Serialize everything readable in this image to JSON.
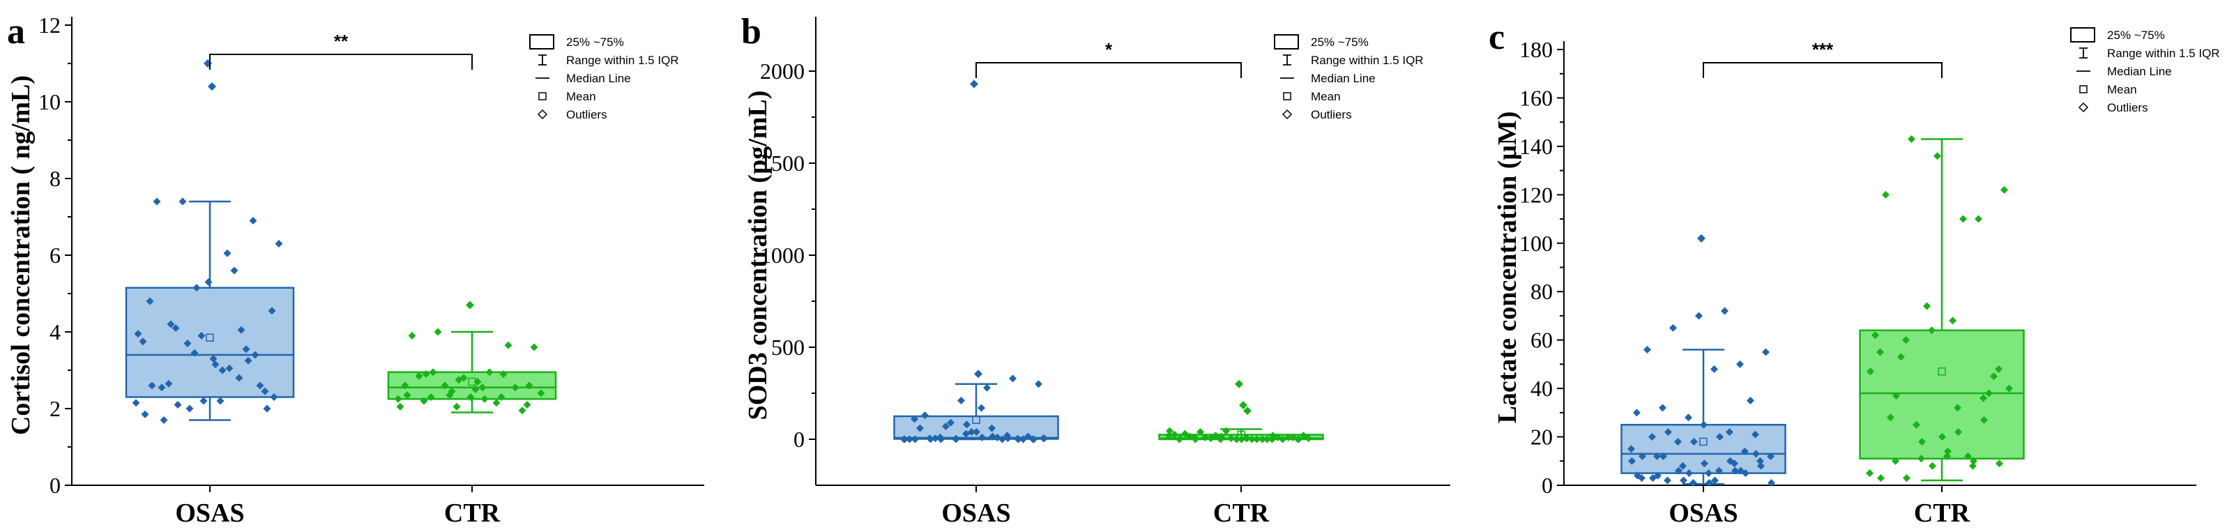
{
  "chart_data": [
    {
      "panel": "a",
      "type": "box",
      "ylabel": "Cortisol concentration ( ng/mL)",
      "ylim": [
        0,
        12
      ],
      "yticks": [
        "0",
        "2",
        "4",
        "6",
        "8",
        "10",
        "12"
      ],
      "categories": [
        "OSAS",
        "CTR"
      ],
      "significance": "**",
      "legend": [
        "25% ~75%",
        "Range within 1.5 IQR",
        "Median Line",
        "Mean",
        "Outliers"
      ],
      "legend_position": "top-right",
      "series": [
        {
          "name": "OSAS",
          "color": "#2166ac",
          "fill": "#a9c9e8",
          "q1": 2.3,
          "median": 3.4,
          "q3": 5.15,
          "whisker_low": 1.7,
          "whisker_high": 7.4,
          "mean": 3.85,
          "points": [
            2.15,
            2.55,
            3.7,
            3.3,
            2.8,
            2.45,
            3.75,
            2.65,
            3.45,
            2.2,
            3.55,
            4.55,
            4.8,
            4.1,
            3.9,
            6.05,
            6.9,
            6.3,
            7.4,
            7.4,
            5.3,
            5.6,
            2.6,
            3.95,
            1.7,
            2.0,
            3.15,
            4.05,
            2.0,
            1.85,
            4.2,
            5.15,
            3.0,
            3.25,
            2.3,
            2.6,
            2.1,
            2.2,
            3.05,
            3.4
          ],
          "outliers": [
            11.0,
            10.4
          ]
        },
        {
          "name": "CTR",
          "color": "#19b219",
          "fill": "#7de67d",
          "q1": 2.25,
          "median": 2.55,
          "q3": 2.95,
          "whisker_low": 1.9,
          "whisker_high": 4.0,
          "mean": 2.7,
          "points": [
            2.25,
            2.2,
            2.35,
            2.5,
            2.3,
            2.1,
            2.6,
            2.3,
            2.05,
            2.55,
            3.65,
            3.6,
            3.9,
            4.0,
            2.8,
            2.95,
            2.55,
            2.4,
            2.85,
            2.6,
            2.3,
            2.15,
            1.95,
            2.05,
            2.9,
            2.45,
            2.7,
            2.9,
            2.6,
            2.35,
            2.95,
            2.75,
            2.25
          ],
          "outliers": [
            4.7
          ]
        }
      ]
    },
    {
      "panel": "b",
      "type": "box",
      "ylabel": "SOD3 concentration (pg/mL)",
      "ylim": [
        -250,
        2250
      ],
      "yticks": [
        "0",
        "500",
        "1000",
        "1500",
        "2000"
      ],
      "categories": [
        "OSAS",
        "CTR"
      ],
      "significance": "*",
      "legend": [
        "25% ~75%",
        "Range within 1.5 IQR",
        "Median Line",
        "Mean",
        "Outliers"
      ],
      "legend_position": "top-right",
      "series": [
        {
          "name": "OSAS",
          "color": "#2166ac",
          "fill": "#a9c9e8",
          "q1": 2,
          "median": 8,
          "q3": 125,
          "whisker_low": 0,
          "whisker_high": 300,
          "mean": 105,
          "points": [
            0,
            5,
            2,
            170,
            20,
            0,
            110,
            10,
            30,
            60,
            3,
            5,
            130,
            90,
            40,
            0,
            15,
            0,
            5,
            210,
            280,
            330,
            300,
            60,
            70,
            40,
            10,
            0,
            0,
            0,
            2,
            10,
            5,
            0,
            0,
            0,
            80,
            15,
            0,
            5
          ],
          "outliers": [
            1930,
            355
          ]
        },
        {
          "name": "CTR",
          "color": "#19b219",
          "fill": "#7de67d",
          "q1": 0,
          "median": 5,
          "q3": 25,
          "whisker_low": 0,
          "whisker_high": 55,
          "mean": 25,
          "points": [
            20,
            10,
            0,
            5,
            0,
            0,
            0,
            10,
            5,
            0,
            0,
            5,
            15,
            20,
            0,
            0,
            10,
            25,
            40,
            45,
            0,
            10,
            20,
            30,
            5,
            0,
            0,
            10,
            45,
            0,
            15,
            5,
            20,
            0,
            5
          ],
          "outliers": [
            300,
            185,
            155
          ]
        }
      ]
    },
    {
      "panel": "c",
      "type": "box",
      "ylabel": "Lactate concentration (μM)",
      "ylim": [
        0,
        180
      ],
      "yticks": [
        "0",
        "20",
        "40",
        "60",
        "80",
        "100",
        "120",
        "140",
        "160",
        "180"
      ],
      "categories": [
        "OSAS",
        "CTR"
      ],
      "significance": "***",
      "legend": [
        "25% ~75%",
        "Range within 1.5 IQR",
        "Median Line",
        "Mean",
        "Outliers"
      ],
      "legend_position": "top-right",
      "series": [
        {
          "name": "OSAS",
          "color": "#2166ac",
          "fill": "#a9c9e8",
          "q1": 5,
          "median": 13,
          "q3": 25,
          "whisker_low": 0.5,
          "whisker_high": 56,
          "mean": 18,
          "points": [
            15,
            12,
            8,
            5,
            9,
            10,
            3,
            2,
            1,
            6,
            14,
            12,
            20,
            18,
            25,
            22,
            21,
            30,
            32,
            28,
            48,
            50,
            55,
            56,
            65,
            70,
            72,
            35,
            10,
            4,
            2,
            1,
            6,
            8,
            12,
            22,
            18,
            20,
            5,
            1,
            3,
            6,
            9,
            10,
            13,
            4,
            12,
            5,
            2,
            6
          ],
          "outliers": [
            102
          ]
        },
        {
          "name": "CTR",
          "color": "#19b219",
          "fill": "#7de67d",
          "q1": 11,
          "median": 38,
          "q3": 64,
          "whisker_low": 2,
          "whisker_high": 143,
          "mean": 47,
          "points": [
            5,
            10,
            11,
            12,
            8,
            48,
            55,
            60,
            64,
            32,
            36,
            40,
            28,
            25,
            20,
            12,
            45,
            62,
            53,
            74,
            68,
            110,
            122,
            120,
            143,
            136,
            110,
            38,
            47,
            37,
            18,
            14,
            10,
            9,
            3,
            3,
            8,
            22,
            27
          ],
          "outliers": []
        }
      ]
    }
  ]
}
